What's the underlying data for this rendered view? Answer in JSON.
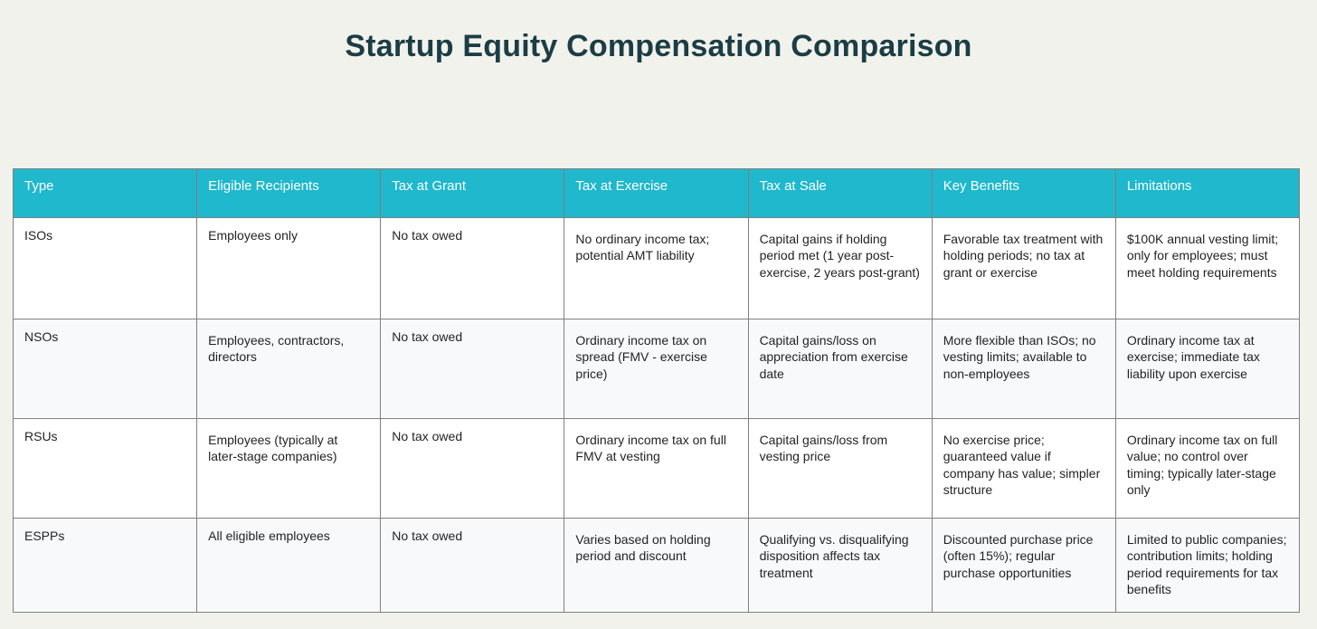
{
  "page": {
    "title": "Startup Equity Compensation Comparison"
  },
  "chart_data": {
    "type": "table",
    "title": "Startup Equity Compensation Comparison",
    "columns": [
      "Type",
      "Eligible Recipients",
      "Tax at Grant",
      "Tax at Exercise",
      "Tax at Sale",
      "Key Benefits",
      "Limitations"
    ],
    "rows": [
      [
        "ISOs",
        "Employees only",
        "No tax owed",
        "No ordinary income tax; potential AMT liability",
        "Capital gains if holding period met (1 year post-exercise, 2 years post-grant)",
        "Favorable tax treatment with holding periods; no tax at grant or exercise",
        "$100K annual vesting limit; only for employees; must meet holding requirements"
      ],
      [
        "NSOs",
        "Employees, contractors, directors",
        "No tax owed",
        "Ordinary income tax on spread (FMV - exercise price)",
        "Capital gains/loss on appreciation from exercise date",
        "More flexible than ISOs; no vesting limits; available to non-employees",
        "Ordinary income tax at exercise; immediate tax liability upon exercise"
      ],
      [
        "RSUs",
        "Employees (typically at later-stage companies)",
        "No tax owed",
        "Ordinary income tax on full FMV at vesting",
        "Capital gains/loss from vesting price",
        "No exercise price; guaranteed value if company has value; simpler structure",
        "Ordinary income tax on full value; no control over timing; typically later-stage only"
      ],
      [
        "ESPPs",
        "All eligible employees",
        "No tax owed",
        "Varies based on holding period and discount",
        "Qualifying vs. disqualifying disposition affects tax treatment",
        "Discounted purchase price (often 15%); regular purchase opportunities",
        "Limited to public companies; contribution limits; holding period requirements for tax benefits"
      ]
    ],
    "layout_hints": {
      "header_fill": "#1fb8cd",
      "header_font_color": "#ffffff",
      "row_fills": [
        "#ffffff",
        "#f8f9fa"
      ],
      "border_color": "#808080",
      "page_background": "#f1f2ec",
      "title_color": "#1c3d45",
      "legend": "none",
      "grid": "table-borders"
    }
  }
}
